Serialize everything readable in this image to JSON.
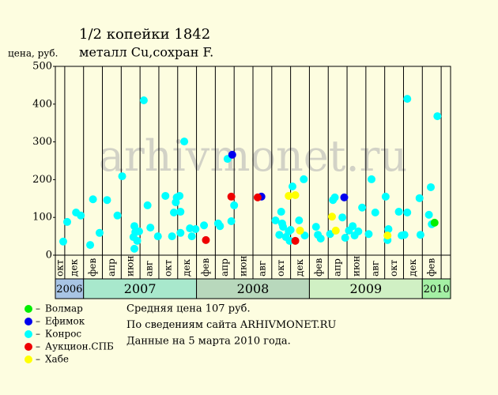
{
  "chart_data": {
    "type": "scatter",
    "title": "1/2 копейки 1842",
    "subtitle": "металл Cu,сохран F.",
    "ylabel": "цена, руб.",
    "watermark": "arhivmonet.ru",
    "xlim": [
      0,
      42
    ],
    "ylim": [
      0,
      500
    ],
    "yticks": [
      0,
      100,
      200,
      300,
      400,
      500
    ],
    "xticks": [
      {
        "value": 1,
        "label": "окт"
      },
      {
        "value": 3,
        "label": "дек"
      },
      {
        "value": 5,
        "label": "фев"
      },
      {
        "value": 7,
        "label": "апр"
      },
      {
        "value": 9,
        "label": "июн"
      },
      {
        "value": 11,
        "label": "авг"
      },
      {
        "value": 13,
        "label": "окт"
      },
      {
        "value": 15,
        "label": "дек"
      },
      {
        "value": 17,
        "label": "фев"
      },
      {
        "value": 19,
        "label": "апр"
      },
      {
        "value": 21,
        "label": "июн"
      },
      {
        "value": 23,
        "label": "авг"
      },
      {
        "value": 25,
        "label": "окт"
      },
      {
        "value": 27,
        "label": "дек"
      },
      {
        "value": 29,
        "label": "фев"
      },
      {
        "value": 31,
        "label": "апр"
      },
      {
        "value": 33,
        "label": "июн"
      },
      {
        "value": 35,
        "label": "авг"
      },
      {
        "value": 37,
        "label": "окт"
      },
      {
        "value": 39,
        "label": "дек"
      },
      {
        "value": 41,
        "label": "фев"
      }
    ],
    "years": [
      {
        "label": "2006",
        "from": 0,
        "to": 3,
        "color": "#a8c4e4"
      },
      {
        "label": "2007",
        "from": 3,
        "to": 15,
        "color": "#a8e8cc"
      },
      {
        "label": "2008",
        "from": 15,
        "to": 27,
        "color": "#b8d8bc"
      },
      {
        "label": "2009",
        "from": 27,
        "to": 39,
        "color": "#d0f0c4"
      },
      {
        "label": "2010",
        "from": 39,
        "to": 42,
        "color": "#a4f0a4"
      }
    ],
    "series": [
      {
        "name": "Конрос",
        "color": "#00ffff",
        "x": [
          0.84,
          1.26,
          2.2,
          2.7,
          3.7,
          4.0,
          4.7,
          5.5,
          6.6,
          7.1,
          8.3,
          8.4,
          8.4,
          8.7,
          8.9,
          8.5,
          9.4,
          9.8,
          10.1,
          10.9,
          11.7,
          12.4,
          12.6,
          12.8,
          12.9,
          13.2,
          13.3,
          13.3,
          13.7,
          14.3,
          14.5,
          14.9,
          15.8,
          17.3,
          17.5,
          18.3,
          18.7,
          19.0,
          23.4,
          23.8,
          24.0,
          24.1,
          24.2,
          24.5,
          24.8,
          25.0,
          24.9,
          25.2,
          25.9,
          26.4,
          26.5,
          27.7,
          27.9,
          28.2,
          29.2,
          29.5,
          29.7,
          30.5,
          30.8,
          31.2,
          31.6,
          31.8,
          32.2,
          32.6,
          33.3,
          33.6,
          34.0,
          35.1,
          35.3,
          35.4,
          36.5,
          36.8,
          37.1,
          37.4,
          37.4,
          38.7,
          38.8,
          39.7,
          39.9,
          40.0,
          40.6
        ],
        "values": [
          36,
          88,
          113,
          105,
          27,
          148,
          59,
          146,
          105,
          209,
          48,
          77,
          17,
          38,
          63,
          61,
          410,
          132,
          73,
          50,
          157,
          50,
          113,
          140,
          153,
          157,
          115,
          59,
          301,
          71,
          50,
          69,
          79,
          84,
          77,
          255,
          90,
          132,
          92,
          54,
          115,
          84,
          75,
          48,
          63,
          67,
          38,
          182,
          92,
          201,
          52,
          75,
          54,
          44,
          56,
          146,
          153,
          100,
          46,
          65,
          77,
          52,
          63,
          126,
          56,
          201,
          113,
          155,
          40,
          69,
          115,
          52,
          54,
          113,
          414,
          151,
          54,
          107,
          180,
          82,
          368
        ]
      },
      {
        "name": "Волмар",
        "color": "#00ee00",
        "x": [
          40.3
        ],
        "values": [
          86
        ]
      },
      {
        "name": "Ефимок",
        "color": "#0000ee",
        "x": [
          18.8,
          21.9,
          30.7
        ],
        "values": [
          266,
          155,
          153
        ]
      },
      {
        "name": "Аукцион.СПБ",
        "color": "#ee0000",
        "x": [
          16.0,
          18.7,
          21.5,
          25.5
        ],
        "values": [
          40,
          155,
          153,
          38
        ]
      },
      {
        "name": "Хабе",
        "color": "#ffff00",
        "x": [
          24.8,
          25.5,
          26.0,
          29.4,
          29.8,
          35.3
        ],
        "values": [
          157,
          159,
          65,
          102,
          65,
          52
        ]
      }
    ],
    "legend_order": [
      1,
      2,
      0,
      3,
      4
    ],
    "notes": [
      "Средняя цена 107 руб.",
      "По сведениям сайта ARHIVMONET.RU",
      "Данные на 5 марта 2010 года."
    ]
  }
}
